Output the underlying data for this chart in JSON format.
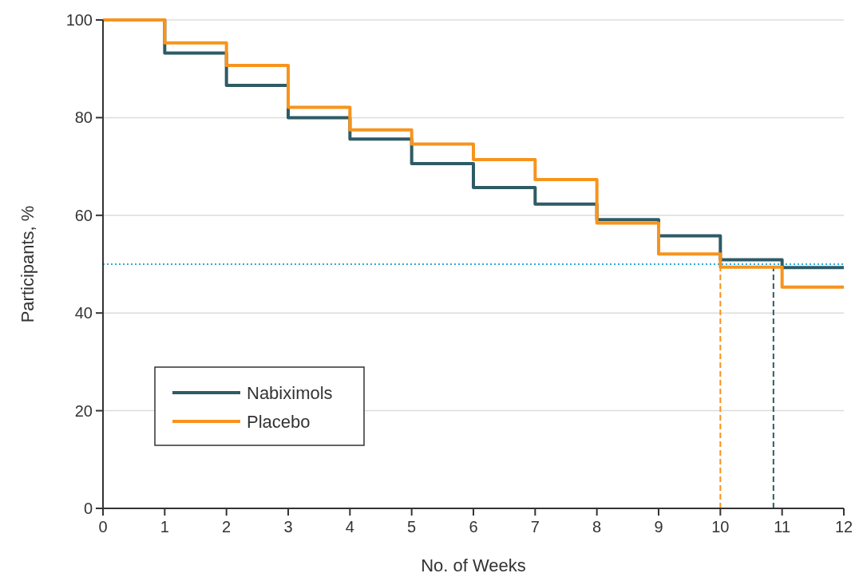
{
  "chart_data": {
    "type": "step",
    "xlabel": "No. of Weeks",
    "ylabel": "Participants, %",
    "x": [
      0,
      1,
      2,
      3,
      4,
      5,
      6,
      7,
      8,
      9,
      10,
      11,
      12
    ],
    "series": [
      {
        "name": "Nabiximols",
        "color": "#2e5b66",
        "values": [
          100,
          93.2,
          86.6,
          80.0,
          75.6,
          70.6,
          65.7,
          62.3,
          59.1,
          55.8,
          50.9,
          49.3,
          49.3
        ]
      },
      {
        "name": "Placebo",
        "color": "#f7941d",
        "values": [
          100,
          95.3,
          90.7,
          82.1,
          77.5,
          74.6,
          71.4,
          67.3,
          58.4,
          52.1,
          49.4,
          45.3,
          45.3
        ]
      }
    ],
    "xlim": [
      0,
      12
    ],
    "xticks": [
      0,
      1,
      2,
      3,
      4,
      5,
      6,
      7,
      8,
      9,
      10,
      11,
      12
    ],
    "ylim": [
      0,
      100
    ],
    "yticks": [
      0,
      20,
      40,
      60,
      80,
      100
    ],
    "grid": "y",
    "legend": "bottom left",
    "ref_lines": [
      {
        "axis": "y",
        "value": 50,
        "color": "#29abe2",
        "line_style": "dotted"
      },
      {
        "axis": "x",
        "value": 10,
        "color": "#f7941d",
        "line_style": "dashed"
      },
      {
        "axis": "x",
        "value": 10.86,
        "color": "#2e5b66",
        "line_style": "dashed"
      }
    ]
  }
}
